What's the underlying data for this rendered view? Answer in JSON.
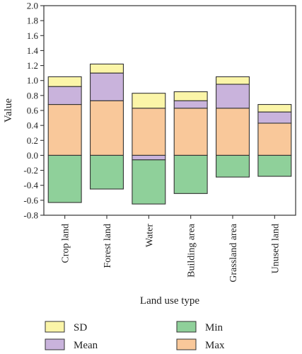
{
  "chart_data": {
    "type": "bar",
    "stacked": true,
    "xlabel": "Land use type",
    "ylabel": "Value",
    "ylim": [
      -0.8,
      2.0
    ],
    "ytick_step": 0.2,
    "grid": false,
    "legend_position": "bottom",
    "categories": [
      "Crop land",
      "Forest land",
      "Water",
      "Building area",
      "Grassland area",
      "Unused land"
    ],
    "series": [
      {
        "name": "Max",
        "color": "#f9c89a",
        "values": [
          0.68,
          0.73,
          0.63,
          0.63,
          0.63,
          0.43
        ]
      },
      {
        "name": "Mean",
        "color": "#c9b3dc",
        "values": [
          0.24,
          0.37,
          -0.06,
          0.1,
          0.32,
          0.15
        ]
      },
      {
        "name": "SD",
        "color": "#fbf5a8",
        "values": [
          0.13,
          0.12,
          0.2,
          0.12,
          0.1,
          0.1
        ]
      },
      {
        "name": "Min",
        "color": "#8fd09a",
        "values": [
          -0.63,
          -0.45,
          -0.59,
          -0.51,
          -0.29,
          -0.28
        ]
      }
    ],
    "legend": [
      {
        "name": "SD",
        "color": "#fbf5a8"
      },
      {
        "name": "Min",
        "color": "#8fd09a"
      },
      {
        "name": "Mean",
        "color": "#c9b3dc"
      },
      {
        "name": "Max",
        "color": "#f9c89a"
      }
    ]
  }
}
